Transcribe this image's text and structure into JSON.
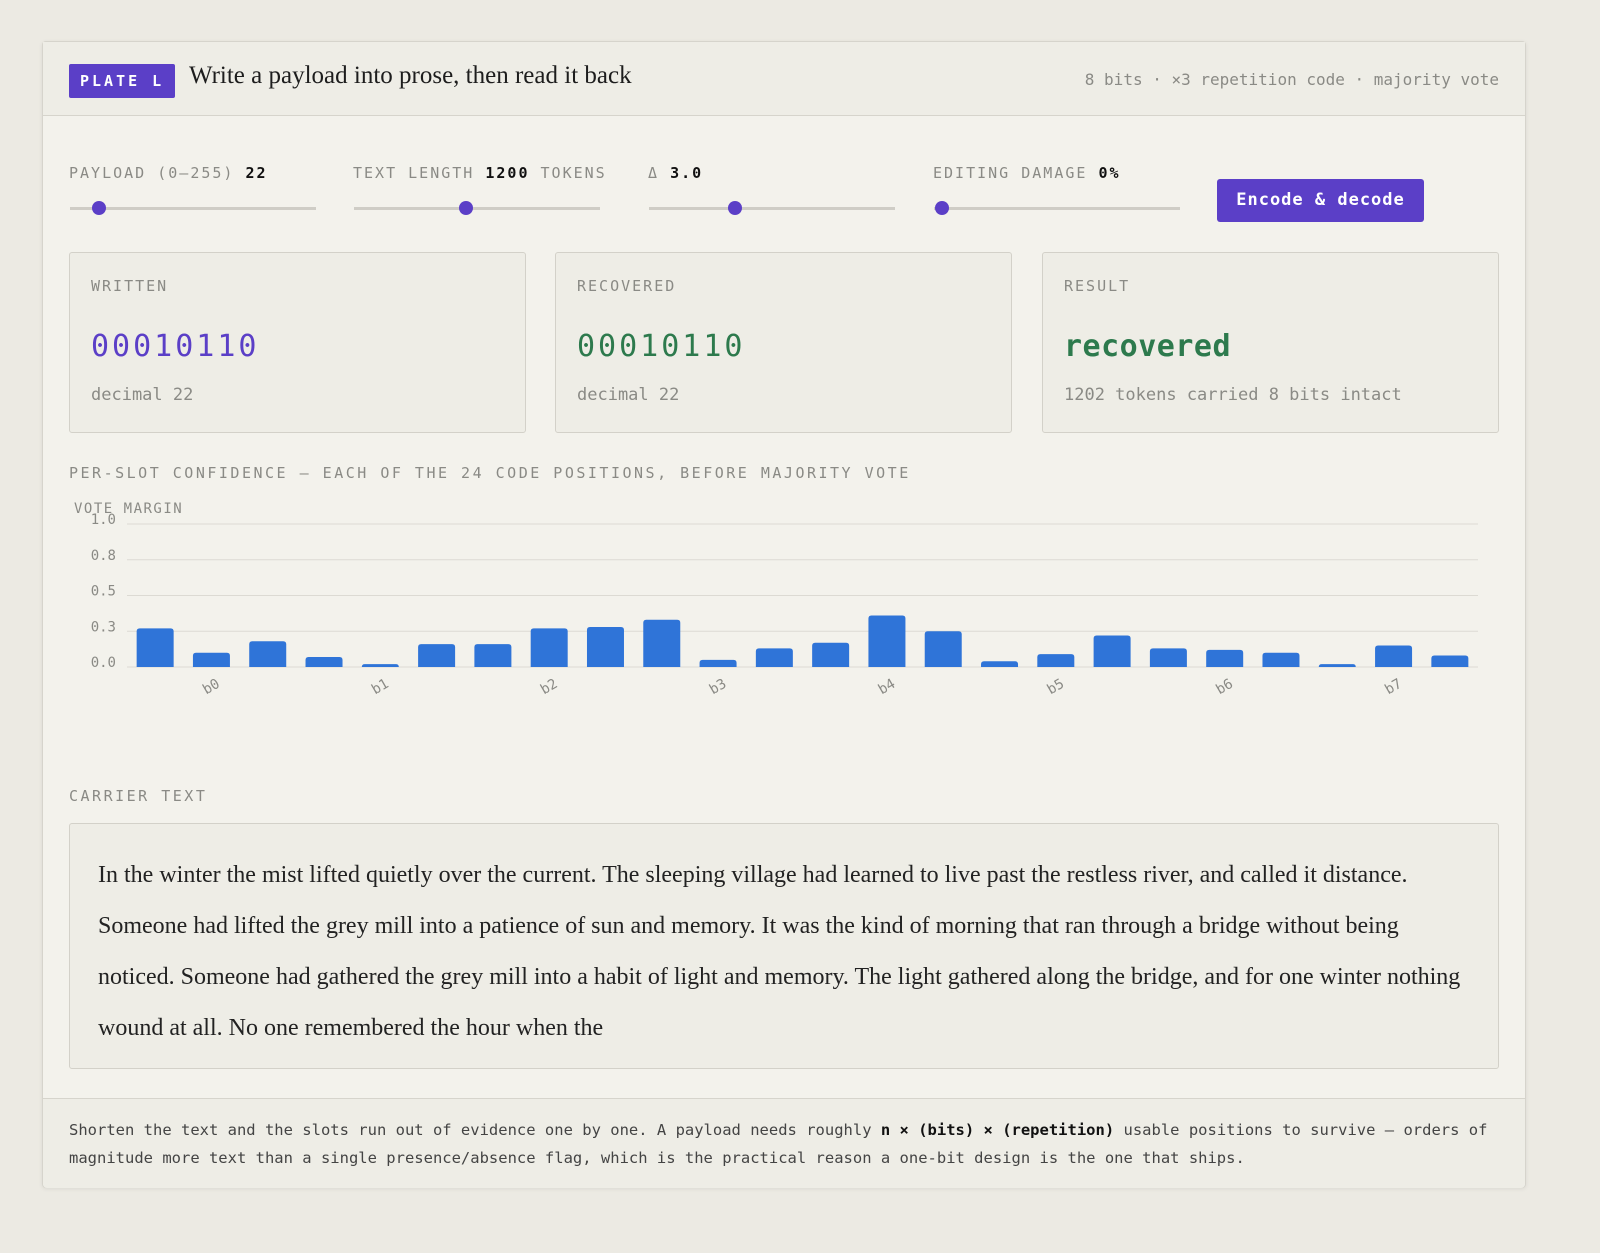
{
  "header": {
    "badge": "PLATE L",
    "title": "Write a payload into prose, then read it back",
    "meta": "8 bits · ×3 repetition code · majority vote"
  },
  "controls": [
    {
      "label": "PAYLOAD (0–255)",
      "value": "22"
    },
    {
      "label": "TEXT LENGTH",
      "value": "1200",
      "unit": "TOKENS"
    },
    {
      "label": "Δ",
      "value": "3.0"
    },
    {
      "label": "EDITING DAMAGE",
      "value": "0%"
    }
  ],
  "button": "Encode & decode",
  "cards": [
    {
      "label": "WRITTEN",
      "value": "00010110",
      "detail": "decimal 22"
    },
    {
      "label": "RECOVERED",
      "value": "00010110",
      "detail": "decimal 22"
    },
    {
      "label": "RESULT",
      "value": "recovered",
      "detail": "1202 tokens carried 8 bits intact"
    }
  ],
  "chart_data": {
    "type": "bar",
    "title": "PER-SLOT CONFIDENCE — EACH OF THE 24 CODE POSITIONS, BEFORE MAJORITY VOTE",
    "y_label": "VOTE MARGIN",
    "categories": [
      null,
      "b0",
      null,
      null,
      "b1",
      null,
      null,
      "b2",
      null,
      null,
      "b3",
      null,
      null,
      "b4",
      null,
      null,
      "b5",
      null,
      null,
      "b6",
      null,
      null,
      "b7",
      null
    ],
    "values": [
      0.27,
      0.1,
      0.18,
      0.07,
      0.02,
      0.16,
      0.16,
      0.27,
      0.28,
      0.33,
      0.05,
      0.13,
      0.17,
      0.36,
      0.25,
      0.04,
      0.09,
      0.22,
      0.13,
      0.12,
      0.1,
      0.02,
      0.15,
      0.08
    ],
    "color": "#2f74d8",
    "ylim": [
      0,
      1
    ],
    "yticks": [
      {
        "value": 0,
        "label": "0.0"
      },
      {
        "value": 0.25,
        "label": "0.3"
      },
      0.5,
      {
        "value": 0.75,
        "label": "0.8"
      },
      {
        "value": 1,
        "label": "1.0"
      }
    ],
    "grid": true
  },
  "carrier": {
    "label": "CARRIER TEXT",
    "text": "In the winter the mist lifted quietly over the current. The sleeping village had learned to live past the restless river, and called it distance. Someone had lifted the grey mill into a patience of sun and memory. It was the kind of morning that ran through a bridge without being noticed. Someone had gathered the grey mill into a habit of light and memory. The light gathered along the bridge, and for one winter nothing wound at all. No one remembered the hour when the"
  },
  "footer": {
    "before": "Shorten the text and the slots run out of evidence one by one. A payload needs roughly ",
    "bold": "n × (bits) × (repetition)",
    "after": " usable positions to survive — orders of magnitude more text than a single presence/absence flag, which is the practical reason a one-bit design is the one that ships."
  }
}
